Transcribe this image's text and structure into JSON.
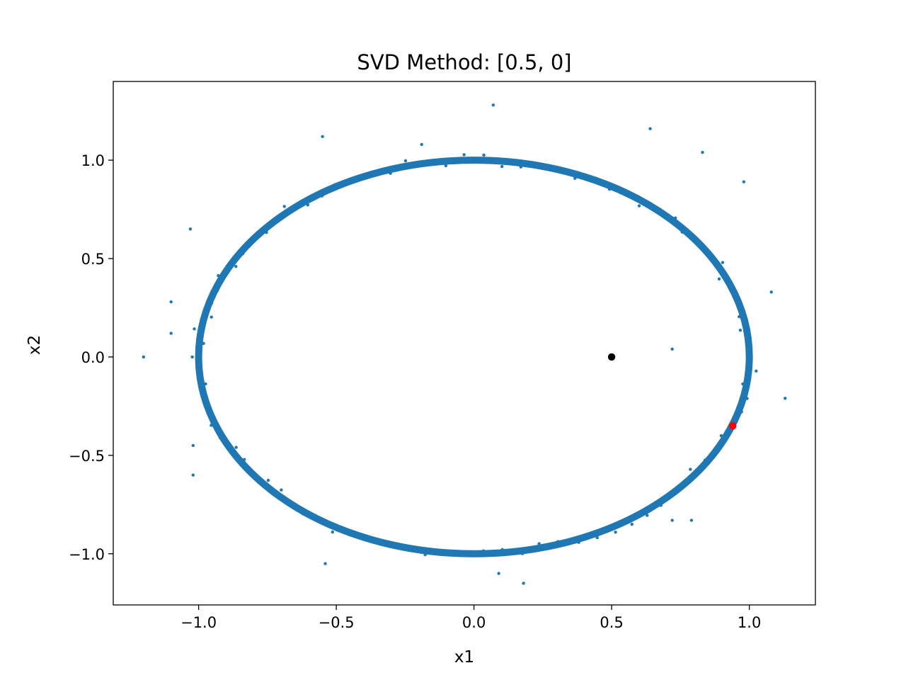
{
  "chart_data": {
    "type": "scatter",
    "title": "SVD Method: [0.5, 0]",
    "xlabel": "x1",
    "ylabel": "x2",
    "xlim": [
      -1.31,
      1.24
    ],
    "ylim": [
      -1.26,
      1.4
    ],
    "grid": false,
    "xticks": [
      -1.0,
      -0.5,
      0.0,
      0.5,
      1.0
    ],
    "xtick_labels": [
      "−1.0",
      "−0.5",
      "0.0",
      "0.5",
      "1.0"
    ],
    "yticks": [
      -1.0,
      -0.5,
      0.0,
      0.5,
      1.0
    ],
    "ytick_labels": [
      "−1.0",
      "−0.5",
      "0.0",
      "0.5",
      "1.0"
    ],
    "colors": {
      "samples": "#1f77b4",
      "center": "#000000",
      "solution": "#ff0000"
    },
    "ring": {
      "cx": 0.0,
      "cy": 0.0,
      "rx": 1.0,
      "ry": 1.0,
      "n_points": 90
    },
    "outliers": [
      [
        -1.2,
        0.0
      ],
      [
        -1.03,
        0.65
      ],
      [
        -1.1,
        0.28
      ],
      [
        -1.1,
        0.12
      ],
      [
        -1.02,
        -0.45
      ],
      [
        -1.02,
        -0.6
      ],
      [
        -0.55,
        1.12
      ],
      [
        -0.54,
        -1.05
      ],
      [
        0.07,
        1.28
      ],
      [
        0.64,
        1.16
      ],
      [
        0.83,
        1.04
      ],
      [
        0.98,
        0.89
      ],
      [
        1.08,
        0.33
      ],
      [
        1.13,
        -0.21
      ],
      [
        0.72,
        0.04
      ],
      [
        0.18,
        -1.15
      ],
      [
        0.09,
        -1.1
      ],
      [
        0.79,
        -0.83
      ],
      [
        0.72,
        -0.83
      ],
      [
        -0.19,
        1.08
      ]
    ],
    "series": [
      {
        "label": "center",
        "x": 0.5,
        "y": 0.0
      },
      {
        "label": "solution",
        "x": 0.94,
        "y": -0.35
      }
    ]
  }
}
